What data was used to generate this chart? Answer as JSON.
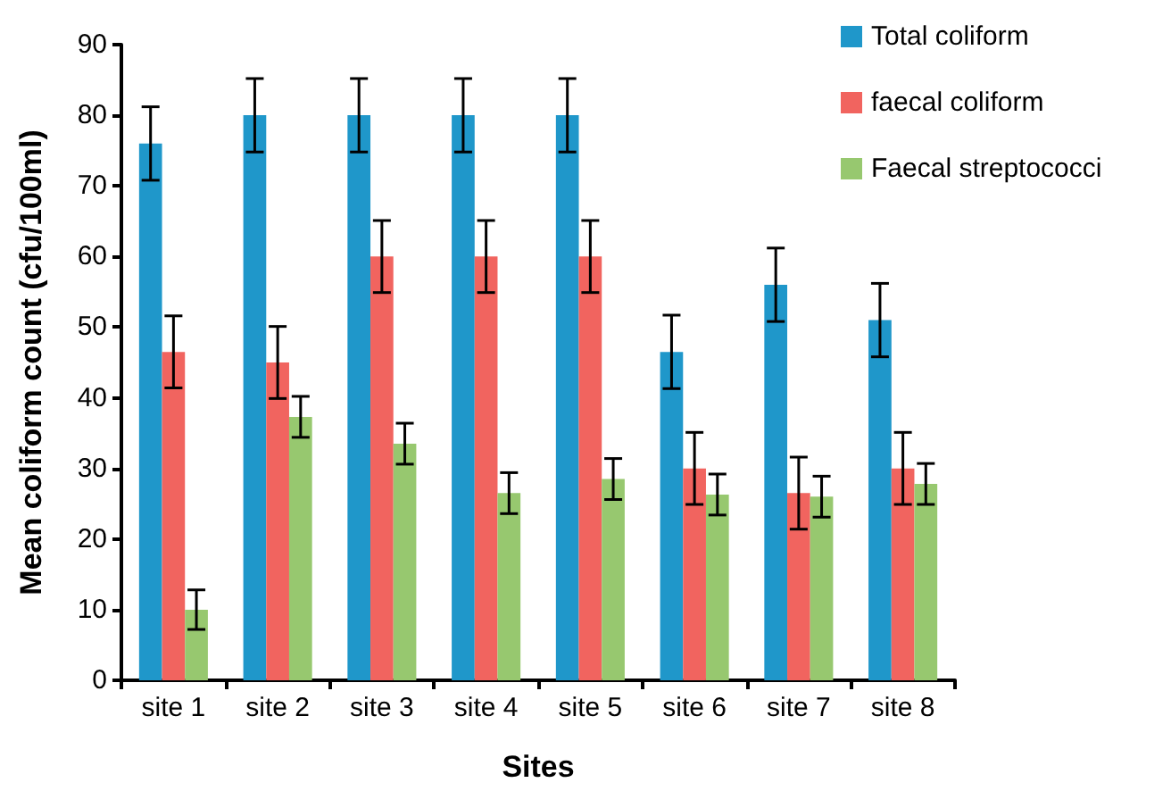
{
  "chart_data": {
    "type": "bar",
    "xlabel": "Sites",
    "ylabel": "Mean coliform count (cfu/100ml)",
    "categories": [
      "site 1",
      "site 2",
      "site 3",
      "site 4",
      "site 5",
      "site 6",
      "site 7",
      "site 8"
    ],
    "series": [
      {
        "name": "Total coliform",
        "color": "#1f97ca",
        "values": [
          76,
          80,
          80,
          80,
          80,
          46.5,
          56,
          51
        ],
        "errors": [
          5.2,
          5.2,
          5.2,
          5.2,
          5.2,
          5.2,
          5.2,
          5.2
        ]
      },
      {
        "name": "faecal coliform",
        "color": "#f1645f",
        "values": [
          46.5,
          45,
          60,
          60,
          60,
          30,
          26.5,
          30
        ],
        "errors": [
          5.1,
          5.1,
          5.1,
          5.1,
          5.1,
          5.1,
          5.1,
          5.1
        ]
      },
      {
        "name": "Faecal streptococci",
        "color": "#97c86f",
        "values": [
          10,
          37.3,
          33.5,
          26.5,
          28.5,
          26.3,
          26,
          27.8
        ],
        "errors": [
          2.8,
          2.9,
          2.9,
          2.9,
          2.9,
          2.9,
          2.9,
          2.9
        ]
      }
    ],
    "ylim": [
      0,
      90
    ],
    "yticks": [
      0,
      10,
      20,
      30,
      40,
      50,
      60,
      70,
      80,
      90
    ],
    "grid": false,
    "legend": "top right"
  }
}
